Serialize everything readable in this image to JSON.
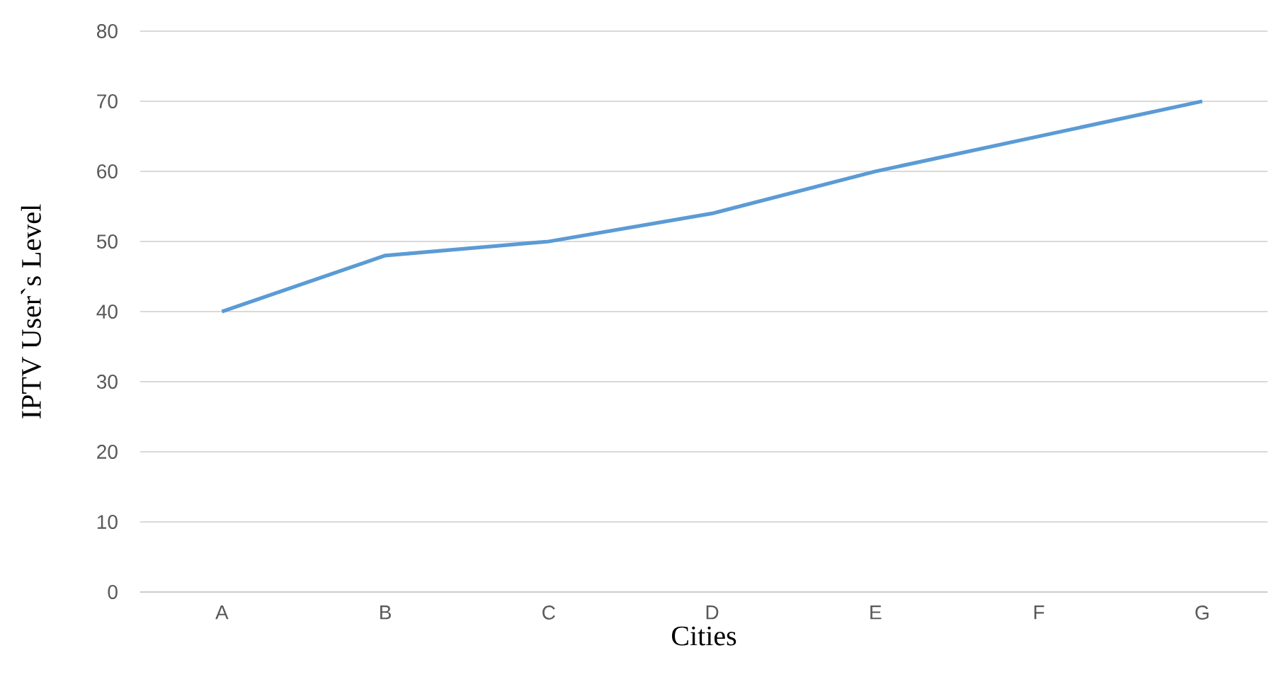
{
  "chart_data": {
    "type": "line",
    "xlabel": "Cities",
    "ylabel": "IPTV User`s Level",
    "categories": [
      "A",
      "B",
      "C",
      "D",
      "E",
      "F",
      "G"
    ],
    "series": [
      {
        "color": "#5b9bd5",
        "values": [
          40,
          48,
          50,
          54,
          60,
          65,
          70
        ]
      }
    ],
    "ylim": [
      0,
      80
    ],
    "yticks": [
      0,
      10,
      20,
      30,
      40,
      50,
      60,
      70,
      80
    ],
    "grid": "y",
    "marker": "none",
    "line_style": "solid"
  }
}
